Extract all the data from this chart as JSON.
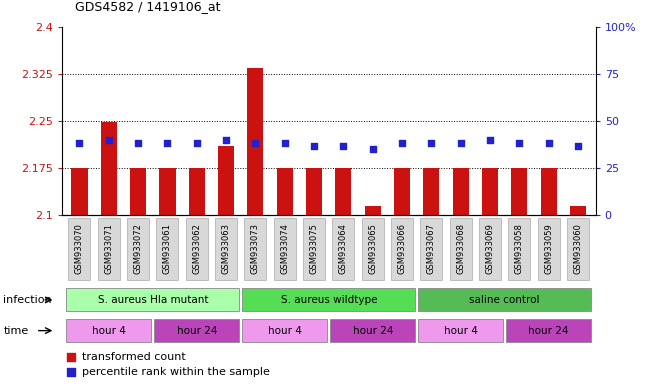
{
  "title": "GDS4582 / 1419106_at",
  "samples": [
    "GSM933070",
    "GSM933071",
    "GSM933072",
    "GSM933061",
    "GSM933062",
    "GSM933063",
    "GSM933073",
    "GSM933074",
    "GSM933075",
    "GSM933064",
    "GSM933065",
    "GSM933066",
    "GSM933067",
    "GSM933068",
    "GSM933069",
    "GSM933058",
    "GSM933059",
    "GSM933060"
  ],
  "bar_values": [
    2.175,
    2.248,
    2.175,
    2.175,
    2.175,
    2.21,
    2.335,
    2.175,
    2.175,
    2.175,
    2.115,
    2.175,
    2.175,
    2.175,
    2.175,
    2.175,
    2.175,
    2.115
  ],
  "blue_values": [
    2.215,
    2.22,
    2.215,
    2.215,
    2.215,
    2.22,
    2.215,
    2.215,
    2.21,
    2.21,
    2.205,
    2.215,
    2.215,
    2.215,
    2.22,
    2.215,
    2.215,
    2.21
  ],
  "ymin": 2.1,
  "ymax": 2.4,
  "yticks": [
    2.1,
    2.175,
    2.25,
    2.325,
    2.4
  ],
  "ytick_labels": [
    "2.1",
    "2.175",
    "2.25",
    "2.325",
    "2.4"
  ],
  "right_yticks": [
    0,
    25,
    50,
    75,
    100
  ],
  "right_ytick_labels": [
    "0",
    "25",
    "50",
    "75",
    "100%"
  ],
  "bar_color": "#cc1111",
  "blue_color": "#2222cc",
  "bar_bottom": 2.1,
  "infection_groups": [
    {
      "label": "S. aureus Hla mutant",
      "start": 0,
      "end": 6,
      "color": "#aaffaa"
    },
    {
      "label": "S. aureus wildtype",
      "start": 6,
      "end": 12,
      "color": "#55dd55"
    },
    {
      "label": "saline control",
      "start": 12,
      "end": 18,
      "color": "#55bb55"
    }
  ],
  "time_groups": [
    {
      "label": "hour 4",
      "start": 0,
      "end": 3,
      "color": "#ee99ee"
    },
    {
      "label": "hour 24",
      "start": 3,
      "end": 6,
      "color": "#bb44bb"
    },
    {
      "label": "hour 4",
      "start": 6,
      "end": 9,
      "color": "#ee99ee"
    },
    {
      "label": "hour 24",
      "start": 9,
      "end": 12,
      "color": "#bb44bb"
    },
    {
      "label": "hour 4",
      "start": 12,
      "end": 15,
      "color": "#ee99ee"
    },
    {
      "label": "hour 24",
      "start": 15,
      "end": 18,
      "color": "#bb44bb"
    }
  ],
  "left_label_color": "#cc1111",
  "right_label_color": "#2222cc",
  "background_color": "#ffffff",
  "infection_label": "infection",
  "time_label": "time"
}
